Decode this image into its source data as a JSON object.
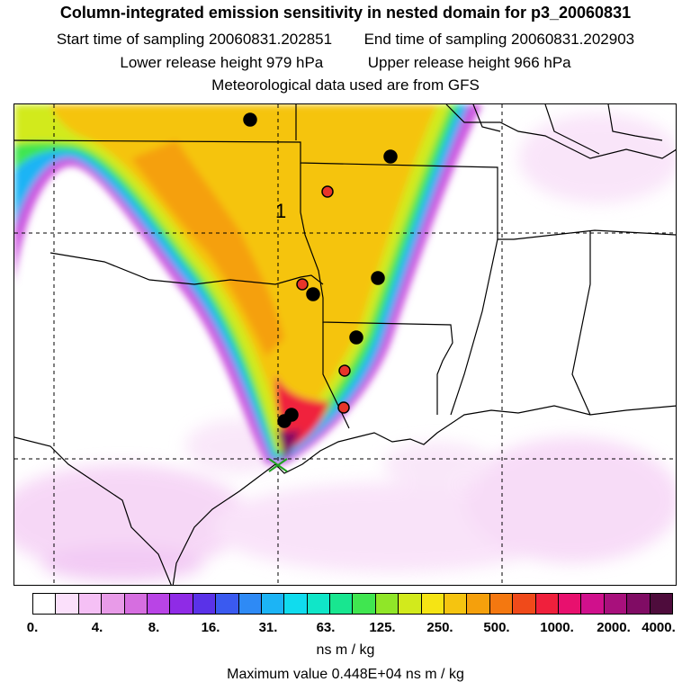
{
  "header": {
    "title": "Column-integrated emission sensitivity in nested domain for p3_20060831",
    "start_time": "Start time of sampling 20060831.202851",
    "end_time": "End time of sampling 20060831.202903",
    "lower_release": "Lower release height  979 hPa",
    "upper_release": "Upper release height  966 hPa",
    "met_data": "Meteorological data used are from GFS"
  },
  "map": {
    "marker_label": "1",
    "stations": [
      {
        "type": "black"
      },
      {
        "type": "black"
      },
      {
        "type": "red"
      },
      {
        "type": "red"
      },
      {
        "type": "black"
      },
      {
        "type": "black"
      },
      {
        "type": "black"
      },
      {
        "type": "red"
      },
      {
        "type": "red"
      },
      {
        "type": "black"
      },
      {
        "type": "black"
      }
    ],
    "colors": {
      "black_station": "#000000",
      "red_station": "#e8352a",
      "release_marker": "#20a020"
    }
  },
  "colorbar": {
    "colors": [
      "#ffffff",
      "#fbe0fb",
      "#f5c0f5",
      "#e89be8",
      "#d66ee0",
      "#b944e6",
      "#8f2be6",
      "#5a32e8",
      "#3a5af0",
      "#2e8af5",
      "#1cb4f5",
      "#10dcee",
      "#10e6c8",
      "#18e690",
      "#40e650",
      "#90e628",
      "#d2ea1c",
      "#f5e414",
      "#f5c410",
      "#f5a00c",
      "#f47810",
      "#f04a1a",
      "#f0203c",
      "#e8106e",
      "#d0108c",
      "#a8107c",
      "#800c64",
      "#4e0c3c"
    ],
    "tick_labels": [
      "0.",
      "4.",
      "8.",
      "16.",
      "31.",
      "63.",
      "125.",
      "250.",
      "500.",
      "1000.",
      "2000.",
      "4000."
    ],
    "units": "ns m / kg"
  },
  "footer": {
    "max_value": "Maximum value  0.448E+04 ns m / kg"
  }
}
